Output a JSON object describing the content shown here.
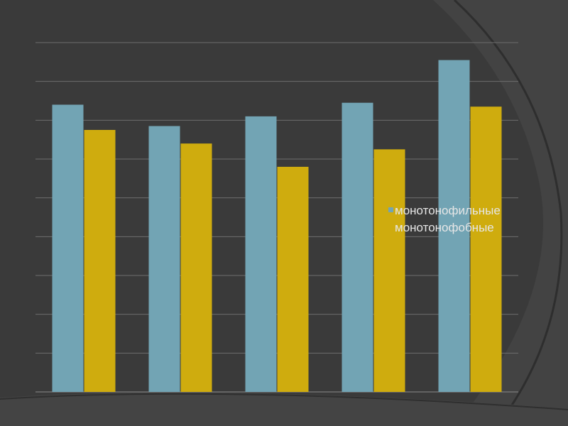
{
  "chart_data": {
    "type": "bar",
    "categories": [
      "",
      "",
      "",
      "",
      ""
    ],
    "series": [
      {
        "name": "монотонофильные",
        "color": "#72a4b4",
        "values": [
          7.4,
          6.85,
          7.1,
          7.45,
          8.55
        ]
      },
      {
        "name": "монотонофобные",
        "color": "#cfac0e",
        "values": [
          6.75,
          6.4,
          5.8,
          6.25,
          7.35
        ]
      }
    ],
    "ylim": [
      0,
      9
    ],
    "grid": true,
    "legend_position": "right",
    "title": "",
    "xlabel": "",
    "ylabel": ""
  }
}
